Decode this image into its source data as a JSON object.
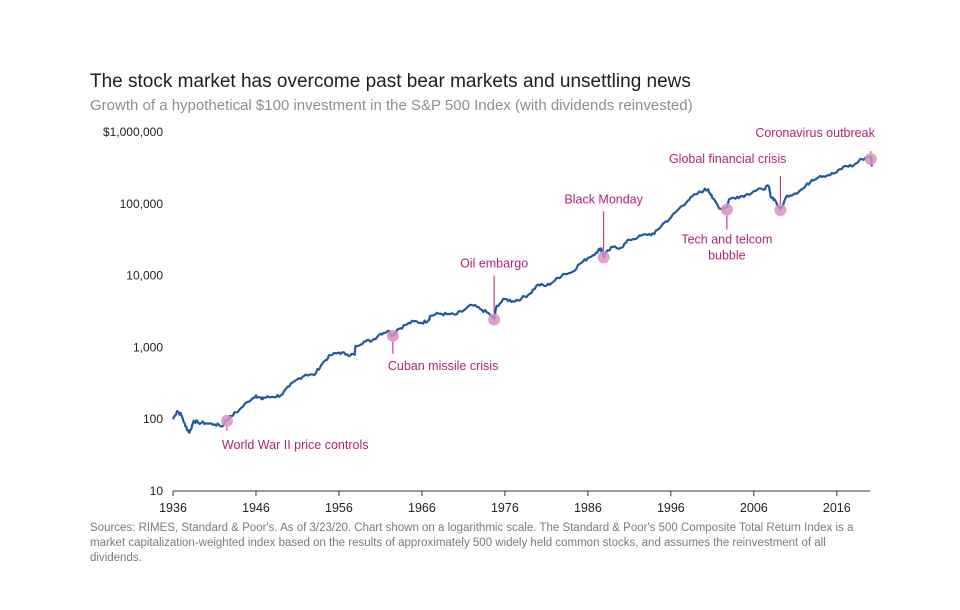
{
  "title": "The stock market has overcome past bear markets and unsettling news",
  "subtitle": "Growth of a hypothetical $100 investment in the S&P 500 Index (with dividends reinvested)",
  "source": "Sources: RIMES, Standard & Poor's. As of 3/23/20. Chart shown on a logarithmic scale. The Standard & Poor's 500 Composite Total Return Index is a market capitalization-weighted index based on the results of approximately 500 widely held common stocks, and assumes the reinvestment of all dividends.",
  "colors": {
    "line": "#2159a0",
    "marker": "#d98fc1",
    "annotation": "#b0237a"
  },
  "chart_data": {
    "type": "line",
    "title": "The stock market has overcome past bear markets and unsettling news",
    "subtitle": "Growth of a hypothetical $100 investment in the S&P 500 Index (with dividends reinvested)",
    "xlabel": "",
    "ylabel": "",
    "yscale": "log",
    "xlim": [
      1936,
      2020
    ],
    "ylim": [
      10,
      1000000
    ],
    "grid": false,
    "legend": "none",
    "y_ticks": [
      {
        "value": 10,
        "label": "10"
      },
      {
        "value": 100,
        "label": "100"
      },
      {
        "value": 1000,
        "label": "1,000"
      },
      {
        "value": 10000,
        "label": "10,000"
      },
      {
        "value": 100000,
        "label": "100,000"
      },
      {
        "value": 1000000,
        "label": "$1,000,000"
      }
    ],
    "x_ticks": [
      {
        "value": 1936,
        "label": "1936"
      },
      {
        "value": 1946,
        "label": "1946"
      },
      {
        "value": 1956,
        "label": "1956"
      },
      {
        "value": 1966,
        "label": "1966"
      },
      {
        "value": 1976,
        "label": "1976"
      },
      {
        "value": 1986,
        "label": "1986"
      },
      {
        "value": 1996,
        "label": "1996"
      },
      {
        "value": 2006,
        "label": "2006"
      },
      {
        "value": 2016,
        "label": "2016"
      }
    ],
    "series": [
      {
        "x": [
          1936,
          1936.5,
          1937,
          1937.5,
          1938,
          1938.5,
          1939,
          1940,
          1941,
          1942,
          1942.3,
          1943,
          1944,
          1945,
          1946,
          1946.7,
          1947,
          1948,
          1949,
          1950,
          1951,
          1952,
          1953,
          1954,
          1955,
          1956,
          1957,
          1957.9,
          1958,
          1959,
          1960,
          1961,
          1961.9,
          1962.5,
          1963,
          1964,
          1965,
          1966,
          1966.8,
          1967,
          1968,
          1969,
          1970,
          1971,
          1972,
          1973,
          1974,
          1974.7,
          1975,
          1976,
          1977,
          1978,
          1979,
          1980,
          1981,
          1982,
          1983,
          1984,
          1985,
          1986,
          1987,
          1987.6,
          1987.9,
          1988,
          1989,
          1990,
          1991,
          1992,
          1993,
          1994,
          1995,
          1996,
          1997,
          1998,
          1999,
          2000,
          2000.5,
          2001,
          2002,
          2002.75,
          2003,
          2004,
          2005,
          2006,
          2007,
          2007.8,
          2008,
          2008.5,
          2009.2,
          2010,
          2011,
          2012,
          2013,
          2014,
          2015,
          2016,
          2017,
          2018,
          2019,
          2020.1,
          2020.22
        ],
        "y": [
          100,
          130,
          115,
          80,
          65,
          95,
          90,
          88,
          85,
          80,
          95,
          110,
          135,
          175,
          215,
          190,
          200,
          205,
          215,
          285,
          360,
          420,
          410,
          600,
          780,
          850,
          800,
          790,
          1050,
          1200,
          1250,
          1550,
          1700,
          1450,
          1750,
          2050,
          2300,
          2200,
          2400,
          2750,
          2950,
          2900,
          2850,
          3250,
          3900,
          3450,
          3000,
          2450,
          3800,
          4700,
          4400,
          4800,
          5600,
          7500,
          7200,
          8500,
          10500,
          11000,
          14500,
          17500,
          21000,
          24000,
          18000,
          19500,
          25000,
          24500,
          31500,
          34000,
          37500,
          38000,
          52000,
          64000,
          86000,
          110000,
          135000,
          155000,
          160000,
          120000,
          85000,
          90000,
          115000,
          125000,
          132000,
          150000,
          160000,
          175000,
          130000,
          115000,
          82000,
          130000,
          140000,
          165000,
          215000,
          245000,
          250000,
          275000,
          335000,
          340000,
          420000,
          460000,
          330000
        ]
      }
    ],
    "annotations": [
      {
        "label": "World War II price controls",
        "x": 1942.5,
        "y": 95,
        "position": "below"
      },
      {
        "label": "Cuban missile crisis",
        "x": 1962.5,
        "y": 1450,
        "position": "below"
      },
      {
        "label": "Oil embargo",
        "x": 1974.7,
        "y": 2450,
        "position": "above"
      },
      {
        "label": "Black Monday",
        "x": 1987.9,
        "y": 18000,
        "position": "above"
      },
      {
        "label": "Tech and telcom",
        "label2": "bubble",
        "x": 2002.75,
        "y": 83000,
        "position": "below"
      },
      {
        "label": "Global financial crisis",
        "x": 2009.2,
        "y": 82000,
        "position": "above"
      },
      {
        "label": "Coronavirus outbreak",
        "x": 2020.1,
        "y": 420000,
        "position": "above"
      }
    ]
  }
}
